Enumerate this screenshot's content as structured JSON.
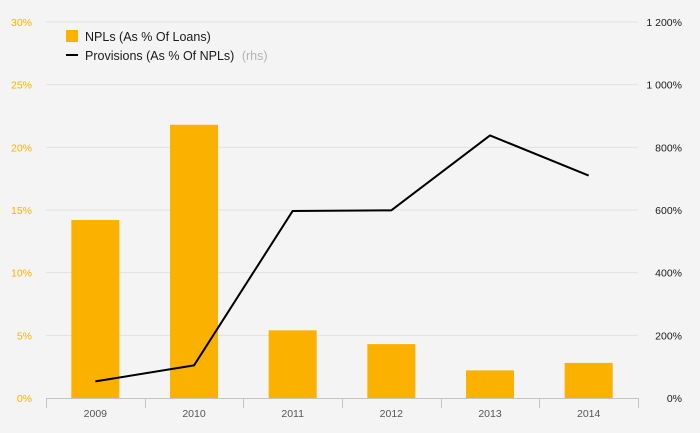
{
  "chart_data": {
    "type": "bar",
    "categories": [
      "2009",
      "2010",
      "2011",
      "2012",
      "2013",
      "2014"
    ],
    "series": [
      {
        "name": "NPLs (As % Of Loans)",
        "type": "bar",
        "axis": "left",
        "values": [
          14.2,
          21.8,
          5.4,
          4.3,
          2.2,
          2.8
        ]
      },
      {
        "name": "Provisions (As % Of NPLs)",
        "suffix": "(rhs)",
        "type": "line",
        "axis": "right",
        "values": [
          53,
          104,
          597,
          599,
          838,
          710
        ]
      }
    ],
    "y_left": {
      "ylim": [
        0,
        30
      ],
      "ticks": [
        "0%",
        "5%",
        "10%",
        "15%",
        "20%",
        "25%",
        "30%"
      ]
    },
    "y_right": {
      "ylim": [
        0,
        1200
      ],
      "ticks": [
        "0%",
        "200%",
        "400%",
        "600%",
        "800%",
        "1 000%",
        "1 200%"
      ]
    },
    "grid": true,
    "legend": "top-left",
    "colors": {
      "bar": "#fbb100",
      "line": "#000000",
      "left_tick": "#fbb100",
      "right_tick": "#1a1a1a",
      "x_tick": "#555555",
      "grid": "#e2e2e2",
      "axis": "#c4c4c4",
      "legend_text": "#1a1a1a",
      "legend_muted": "#b3b3b3",
      "background": "#f4f4f4"
    }
  }
}
